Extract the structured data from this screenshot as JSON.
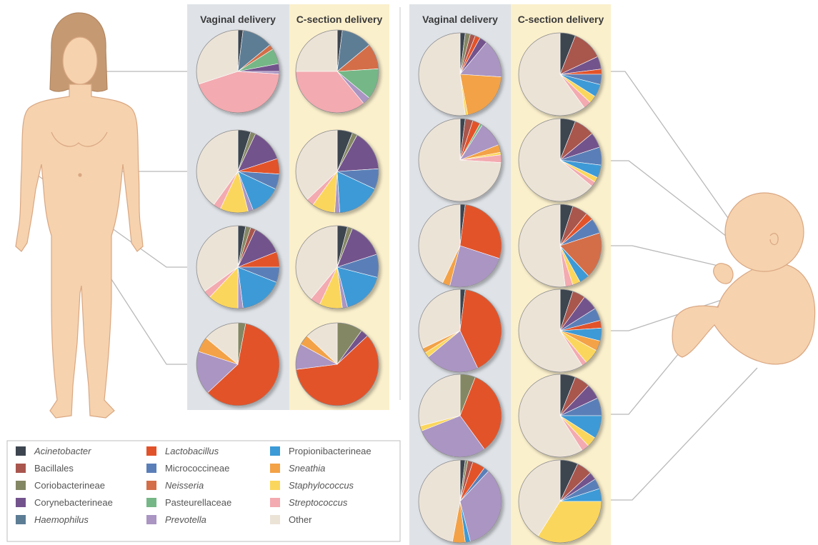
{
  "column_headers": {
    "vaginal": "Vaginal delivery",
    "csection": "C-section delivery"
  },
  "colors": {
    "panel_vaginal": "#dfe3e8",
    "panel_csection": "#fbf0cc",
    "skin": "#f6d2ae",
    "skin_line": "#d9a782",
    "hair": "#c59a73",
    "connector": "#b9b9b9"
  },
  "taxa": [
    {
      "key": "acinetobacter",
      "label": "Acinetobacter",
      "italic": true,
      "color": "#3d4550"
    },
    {
      "key": "lactobacillus",
      "label": "Lactobacillus",
      "italic": true,
      "color": "#e2522a"
    },
    {
      "key": "propionibacterineae",
      "label": "Propionibacterineae",
      "italic": false,
      "color": "#3c9ad6"
    },
    {
      "key": "bacillales",
      "label": "Bacillales",
      "italic": false,
      "color": "#a9564e"
    },
    {
      "key": "micrococcineae",
      "label": "Micrococcineae",
      "italic": false,
      "color": "#5a7fb8"
    },
    {
      "key": "sneathia",
      "label": "Sneathia",
      "italic": true,
      "color": "#f3a247"
    },
    {
      "key": "coriobacterineae",
      "label": "Coriobacterineae",
      "italic": false,
      "color": "#848763"
    },
    {
      "key": "neisseria",
      "label": "Neisseria",
      "italic": true,
      "color": "#d36e48"
    },
    {
      "key": "staphylococcus",
      "label": "Staphylococcus",
      "italic": true,
      "color": "#fbd65c"
    },
    {
      "key": "corynebacterineae",
      "label": "Corynebacterineae",
      "italic": false,
      "color": "#73538c"
    },
    {
      "key": "pasteurellaceae",
      "label": "Pasteurellaceae",
      "italic": false,
      "color": "#75b786"
    },
    {
      "key": "streptococcus",
      "label": "Streptococcus",
      "italic": true,
      "color": "#f3aab0"
    },
    {
      "key": "haemophilus",
      "label": "Haemophilus",
      "italic": true,
      "color": "#5d7d95"
    },
    {
      "key": "prevotella",
      "label": "Prevotella",
      "italic": true,
      "color": "#aa95c3"
    },
    {
      "key": "other",
      "label": "Other",
      "italic": false,
      "color": "#ece3d7"
    }
  ],
  "mothers": [
    {
      "site": "mouth",
      "vaginal": [
        [
          "acinetobacter",
          2
        ],
        [
          "haemophilus",
          12
        ],
        [
          "neisseria",
          2
        ],
        [
          "pasteurellaceae",
          6
        ],
        [
          "corynebacterineae",
          3
        ],
        [
          "prevotella",
          1
        ],
        [
          "streptococcus",
          44
        ],
        [
          "other",
          30
        ]
      ],
      "csection": [
        [
          "acinetobacter",
          2
        ],
        [
          "haemophilus",
          12
        ],
        [
          "neisseria",
          10
        ],
        [
          "pasteurellaceae",
          12
        ],
        [
          "prevotella",
          3
        ],
        [
          "streptococcus",
          36
        ],
        [
          "other",
          25
        ]
      ]
    },
    {
      "site": "skin",
      "vaginal": [
        [
          "acinetobacter",
          5
        ],
        [
          "coriobacterineae",
          2
        ],
        [
          "corynebacterineae",
          13
        ],
        [
          "lactobacillus",
          6
        ],
        [
          "micrococcineae",
          6
        ],
        [
          "propionibacterineae",
          12
        ],
        [
          "prevotella",
          2
        ],
        [
          "staphylococcus",
          11
        ],
        [
          "streptococcus",
          3
        ],
        [
          "other",
          40
        ]
      ],
      "csection": [
        [
          "acinetobacter",
          6
        ],
        [
          "coriobacterineae",
          2
        ],
        [
          "corynebacterineae",
          16
        ],
        [
          "micrococcineae",
          8
        ],
        [
          "propionibacterineae",
          17
        ],
        [
          "prevotella",
          2
        ],
        [
          "staphylococcus",
          9
        ],
        [
          "streptococcus",
          3
        ],
        [
          "other",
          37
        ]
      ]
    },
    {
      "site": "skin",
      "vaginal": [
        [
          "acinetobacter",
          3
        ],
        [
          "coriobacterineae",
          2
        ],
        [
          "bacillales",
          2
        ],
        [
          "corynebacterineae",
          12
        ],
        [
          "lactobacillus",
          6
        ],
        [
          "micrococcineae",
          6
        ],
        [
          "propionibacterineae",
          17
        ],
        [
          "prevotella",
          2
        ],
        [
          "staphylococcus",
          12
        ],
        [
          "streptococcus",
          3
        ],
        [
          "other",
          35
        ]
      ],
      "csection": [
        [
          "acinetobacter",
          4
        ],
        [
          "coriobacterineae",
          2
        ],
        [
          "corynebacterineae",
          14
        ],
        [
          "micrococcineae",
          9
        ],
        [
          "propionibacterineae",
          17
        ],
        [
          "prevotella",
          2
        ],
        [
          "staphylococcus",
          9
        ],
        [
          "streptococcus",
          4
        ],
        [
          "other",
          39
        ]
      ]
    },
    {
      "site": "vagina",
      "vaginal": [
        [
          "coriobacterineae",
          3
        ],
        [
          "lactobacillus",
          60
        ],
        [
          "prevotella",
          17
        ],
        [
          "sneathia",
          6
        ],
        [
          "other",
          14
        ]
      ],
      "csection": [
        [
          "coriobacterineae",
          10
        ],
        [
          "corynebacterineae",
          3
        ],
        [
          "lactobacillus",
          60
        ],
        [
          "prevotella",
          10
        ],
        [
          "sneathia",
          4
        ],
        [
          "other",
          13
        ]
      ]
    }
  ],
  "babies": [
    {
      "site": "mouth",
      "vaginal": [
        [
          "acinetobacter",
          2
        ],
        [
          "coriobacterineae",
          2
        ],
        [
          "bacillales",
          2
        ],
        [
          "lactobacillus",
          2
        ],
        [
          "corynebacterineae",
          3
        ],
        [
          "prevotella",
          15
        ],
        [
          "sneathia",
          21
        ],
        [
          "staphylococcus",
          1
        ],
        [
          "other",
          52
        ]
      ],
      "csection": [
        [
          "acinetobacter",
          6
        ],
        [
          "bacillales",
          12
        ],
        [
          "corynebacterineae",
          5
        ],
        [
          "lactobacillus",
          2
        ],
        [
          "micrococcineae",
          4
        ],
        [
          "propionibacterineae",
          5
        ],
        [
          "staphylococcus",
          3
        ],
        [
          "streptococcus",
          3
        ],
        [
          "other",
          60
        ]
      ]
    },
    {
      "site": "nasopharynx",
      "vaginal": [
        [
          "acinetobacter",
          2
        ],
        [
          "bacillales",
          3
        ],
        [
          "lactobacillus",
          3
        ],
        [
          "pasteurellaceae",
          1
        ],
        [
          "prevotella",
          10
        ],
        [
          "sneathia",
          3
        ],
        [
          "staphylococcus",
          1
        ],
        [
          "streptococcus",
          3
        ],
        [
          "other",
          74
        ]
      ],
      "csection": [
        [
          "acinetobacter",
          6
        ],
        [
          "bacillales",
          8
        ],
        [
          "corynebacterineae",
          6
        ],
        [
          "micrococcineae",
          7
        ],
        [
          "propionibacterineae",
          5
        ],
        [
          "staphylococcus",
          2
        ],
        [
          "streptococcus",
          2
        ],
        [
          "other",
          64
        ]
      ]
    },
    {
      "site": "skin",
      "vaginal": [
        [
          "acinetobacter",
          2
        ],
        [
          "lactobacillus",
          28
        ],
        [
          "prevotella",
          24
        ],
        [
          "sneathia",
          3
        ],
        [
          "other",
          43
        ]
      ],
      "csection": [
        [
          "acinetobacter",
          5
        ],
        [
          "bacillales",
          6
        ],
        [
          "lactobacillus",
          3
        ],
        [
          "micrococcineae",
          6
        ],
        [
          "neisseria",
          18
        ],
        [
          "propionibacterineae",
          4
        ],
        [
          "staphylococcus",
          3
        ],
        [
          "streptococcus",
          3
        ],
        [
          "other",
          52
        ]
      ]
    },
    {
      "site": "skin",
      "vaginal": [
        [
          "acinetobacter",
          2
        ],
        [
          "lactobacillus",
          41
        ],
        [
          "prevotella",
          21
        ],
        [
          "staphylococcus",
          2
        ],
        [
          "sneathia",
          2
        ],
        [
          "other",
          32
        ]
      ],
      "csection": [
        [
          "acinetobacter",
          5
        ],
        [
          "bacillales",
          5
        ],
        [
          "corynebacterineae",
          6
        ],
        [
          "micrococcineae",
          5
        ],
        [
          "lactobacillus",
          3
        ],
        [
          "propionibacterineae",
          5
        ],
        [
          "sneathia",
          4
        ],
        [
          "staphylococcus",
          6
        ],
        [
          "streptococcus",
          2
        ],
        [
          "other",
          59
        ]
      ]
    },
    {
      "site": "skin",
      "vaginal": [
        [
          "coriobacterineae",
          6
        ],
        [
          "lactobacillus",
          34
        ],
        [
          "prevotella",
          29
        ],
        [
          "staphylococcus",
          2
        ],
        [
          "other",
          29
        ]
      ],
      "csection": [
        [
          "acinetobacter",
          6
        ],
        [
          "bacillales",
          6
        ],
        [
          "corynebacterineae",
          6
        ],
        [
          "micrococcineae",
          7
        ],
        [
          "propionibacterineae",
          9
        ],
        [
          "staphylococcus",
          4
        ],
        [
          "streptococcus",
          3
        ],
        [
          "other",
          59
        ]
      ]
    },
    {
      "site": "meconium",
      "vaginal": [
        [
          "acinetobacter",
          2
        ],
        [
          "coriobacterineae",
          1
        ],
        [
          "bacillales",
          2
        ],
        [
          "lactobacillus",
          5
        ],
        [
          "micrococcineae",
          2
        ],
        [
          "prevotella",
          34
        ],
        [
          "propionibacterineae",
          2
        ],
        [
          "sneathia",
          5
        ],
        [
          "other",
          47
        ]
      ],
      "csection": [
        [
          "acinetobacter",
          7
        ],
        [
          "bacillales",
          6
        ],
        [
          "corynebacterineae",
          3
        ],
        [
          "micrococcineae",
          4
        ],
        [
          "propionibacterineae",
          5
        ],
        [
          "staphylococcus",
          34
        ],
        [
          "other",
          41
        ]
      ]
    }
  ]
}
